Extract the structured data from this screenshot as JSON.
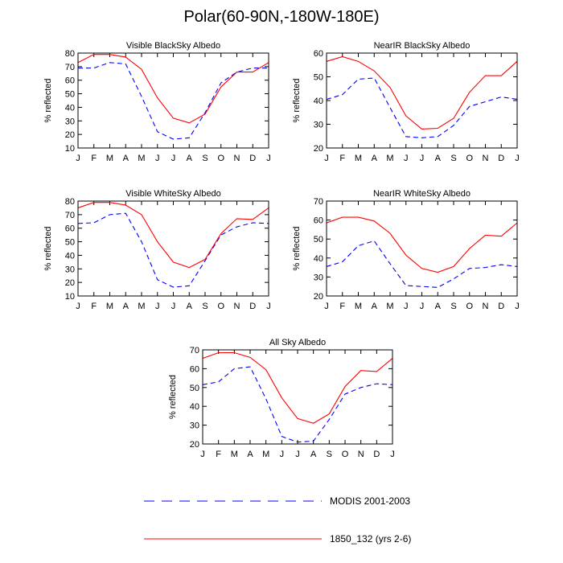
{
  "title": "Polar(60-90N,-180W-180E)",
  "colors": {
    "modis": "#0000ff",
    "model": "#ff0000",
    "axis": "#000000"
  },
  "legend": {
    "entries": [
      {
        "label": "MODIS 2001-2003",
        "style": "dashed",
        "color": "#0000ff"
      },
      {
        "label": "1850_132 (yrs 2-6)",
        "style": "solid",
        "color": "#ff0000"
      }
    ]
  },
  "chart_data": [
    {
      "type": "line",
      "title": "Visible BlackSky Albedo",
      "ylabel": "% reflected",
      "categories": [
        "J",
        "F",
        "M",
        "A",
        "M",
        "J",
        "J",
        "A",
        "S",
        "O",
        "N",
        "D",
        "J"
      ],
      "ylim": [
        10,
        80
      ],
      "yticks": [
        10,
        20,
        30,
        40,
        50,
        60,
        70,
        80
      ],
      "series": [
        {
          "name": "MODIS 2001-2003",
          "style": "dashed",
          "values": [
            69,
            69,
            73,
            72,
            48,
            22,
            16.5,
            17.5,
            36,
            58,
            66,
            69,
            69
          ]
        },
        {
          "name": "1850_132 (yrs 2-6)",
          "style": "solid",
          "values": [
            73,
            79,
            79,
            77,
            68,
            47,
            32,
            28.5,
            35,
            55,
            66,
            66,
            73
          ]
        }
      ]
    },
    {
      "type": "line",
      "title": "NearIR BlackSky Albedo",
      "ylabel": "% reflected",
      "categories": [
        "J",
        "F",
        "M",
        "A",
        "M",
        "J",
        "J",
        "A",
        "S",
        "O",
        "N",
        "D",
        "J"
      ],
      "ylim": [
        20,
        60
      ],
      "yticks": [
        20,
        30,
        40,
        50,
        60
      ],
      "series": [
        {
          "name": "MODIS 2001-2003",
          "style": "dashed",
          "values": [
            40.5,
            42.5,
            49,
            49.5,
            37,
            24.8,
            24.3,
            24.8,
            29.5,
            37.5,
            39.5,
            41.5,
            40.5
          ]
        },
        {
          "name": "1850_132 (yrs 2-6)",
          "style": "solid",
          "values": [
            56.5,
            58.5,
            56.5,
            52.5,
            45.5,
            33.5,
            28,
            28.3,
            32.5,
            43.5,
            50.5,
            50.5,
            56.5
          ]
        }
      ]
    },
    {
      "type": "line",
      "title": "Visible WhiteSky Albedo",
      "ylabel": "% reflected",
      "categories": [
        "J",
        "F",
        "M",
        "A",
        "M",
        "J",
        "J",
        "A",
        "S",
        "O",
        "N",
        "D",
        "J"
      ],
      "ylim": [
        10,
        80
      ],
      "yticks": [
        10,
        20,
        30,
        40,
        50,
        60,
        70,
        80
      ],
      "series": [
        {
          "name": "MODIS 2001-2003",
          "style": "dashed",
          "values": [
            63.5,
            64,
            70,
            71,
            50,
            22,
            16.5,
            17.5,
            36,
            55,
            61,
            64,
            63.5
          ]
        },
        {
          "name": "1850_132 (yrs 2-6)",
          "style": "solid",
          "values": [
            75,
            79,
            79,
            77,
            70,
            50,
            35,
            31,
            37,
            56,
            67,
            66.5,
            75
          ]
        }
      ]
    },
    {
      "type": "line",
      "title": "NearIR WhiteSky Albedo",
      "ylabel": "% reflected",
      "categories": [
        "J",
        "F",
        "M",
        "A",
        "M",
        "J",
        "J",
        "A",
        "S",
        "O",
        "N",
        "D",
        "J"
      ],
      "ylim": [
        20,
        70
      ],
      "yticks": [
        20,
        30,
        40,
        50,
        60,
        70
      ],
      "series": [
        {
          "name": "MODIS 2001-2003",
          "style": "dashed",
          "values": [
            35.5,
            38,
            46.5,
            49,
            37,
            25.5,
            25,
            24.5,
            29,
            34.5,
            35,
            36.5,
            35.5
          ]
        },
        {
          "name": "1850_132 (yrs 2-6)",
          "style": "solid",
          "values": [
            58.5,
            61.5,
            61.5,
            59.5,
            53,
            41.5,
            34.5,
            32.5,
            35.5,
            45,
            52,
            51.5,
            58.5
          ]
        }
      ]
    },
    {
      "type": "line",
      "title": "All Sky Albedo",
      "ylabel": "% reflected",
      "categories": [
        "J",
        "F",
        "M",
        "A",
        "M",
        "J",
        "J",
        "A",
        "S",
        "O",
        "N",
        "D",
        "J"
      ],
      "ylim": [
        20,
        70
      ],
      "yticks": [
        20,
        30,
        40,
        50,
        60,
        70
      ],
      "series": [
        {
          "name": "MODIS 2001-2003",
          "style": "dashed",
          "values": [
            51.5,
            53,
            60,
            61,
            44,
            24,
            21,
            21.5,
            33,
            46.5,
            50,
            52,
            51.5
          ]
        },
        {
          "name": "1850_132 (yrs 2-6)",
          "style": "solid",
          "values": [
            65.5,
            68.5,
            68.5,
            66,
            59.5,
            44.5,
            33.5,
            31,
            36,
            50.5,
            59,
            58.5,
            65.5
          ]
        }
      ]
    }
  ]
}
